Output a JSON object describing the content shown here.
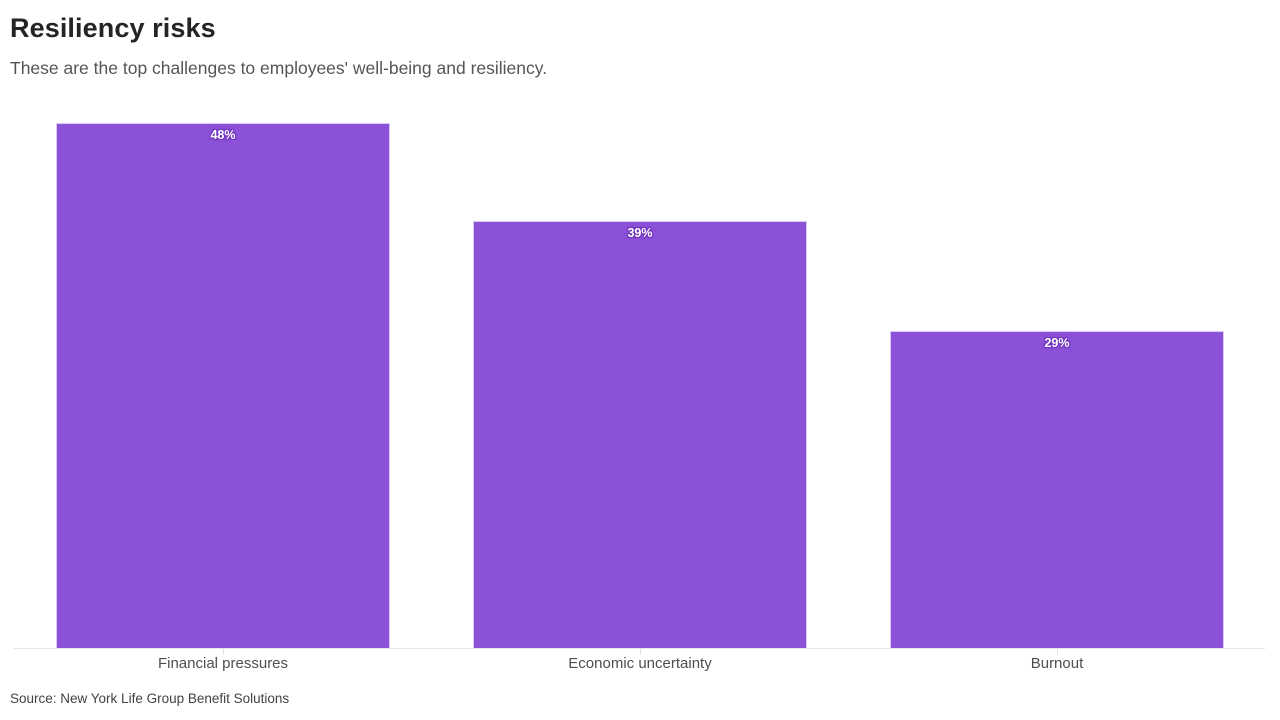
{
  "header": {
    "title": "Resiliency risks",
    "subtitle": "These are the top challenges to employees' well-being and resiliency."
  },
  "chart_data": {
    "type": "bar",
    "title": "Resiliency risks",
    "subtitle": "These are the top challenges to employees' well-being and resiliency.",
    "categories": [
      "Financial pressures",
      "Economic uncertainty",
      "Burnout"
    ],
    "values": [
      48,
      39,
      29
    ],
    "value_labels": [
      "48%",
      "39%",
      "29%"
    ],
    "xlabel": "",
    "ylabel": "",
    "ylim": [
      0,
      50
    ],
    "grid": false,
    "legend": false,
    "bar_color": "#8b51d8",
    "bar_border_color": "#dcc9f2",
    "value_label_color": "#ffffff",
    "value_label_halo_color": "#7136bd",
    "axis_line_color": "#e5e5e9"
  },
  "footer": {
    "source": "Source: New York Life Group Benefit Solutions"
  }
}
